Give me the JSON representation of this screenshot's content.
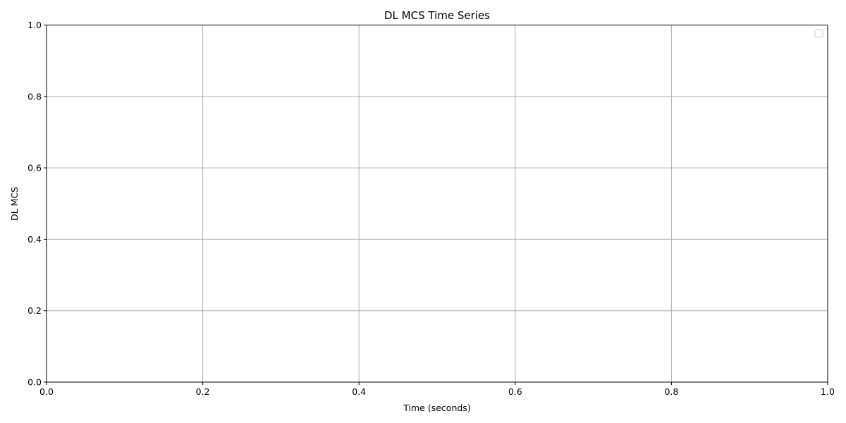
{
  "chart_data": {
    "type": "line",
    "title": "DL MCS Time Series",
    "xlabel": "Time (seconds)",
    "ylabel": "DL MCS",
    "xlim": [
      0.0,
      1.0
    ],
    "ylim": [
      0.0,
      1.0
    ],
    "x_ticks": [
      "0.0",
      "0.2",
      "0.4",
      "0.6",
      "0.8",
      "1.0"
    ],
    "y_ticks": [
      "0.0",
      "0.2",
      "0.4",
      "0.6",
      "0.8",
      "1.0"
    ],
    "grid": true,
    "legend": "top-right",
    "series": []
  },
  "colors": {
    "grid": "#b0b0b0",
    "axes": "#000000",
    "background": "#ffffff",
    "legend_border": "#cccccc"
  }
}
